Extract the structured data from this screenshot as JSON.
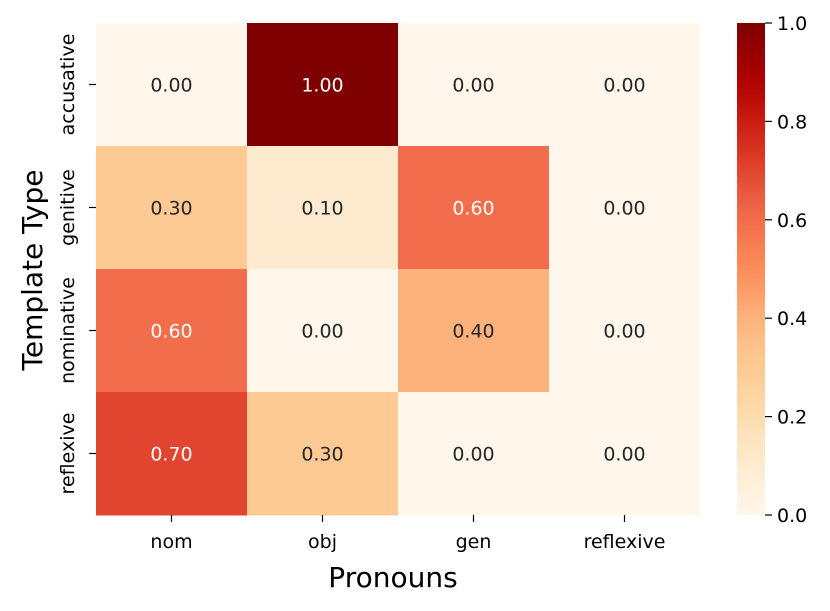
{
  "chart_data": {
    "type": "heatmap",
    "xlabel": "Pronouns",
    "ylabel": "Template Type",
    "x_categories": [
      "nom",
      "obj",
      "gen",
      "reflexive"
    ],
    "y_categories": [
      "accusative",
      "genitive",
      "nominative",
      "reflexive"
    ],
    "values": [
      [
        0.0,
        1.0,
        0.0,
        0.0
      ],
      [
        0.3,
        0.1,
        0.6,
        0.0
      ],
      [
        0.6,
        0.0,
        0.4,
        0.0
      ],
      [
        0.7,
        0.3,
        0.0,
        0.0
      ]
    ],
    "value_format": "0.00",
    "colormap": "OrRd",
    "vmin": 0.0,
    "vmax": 1.0,
    "colorbar_ticks": [
      "0.0",
      "0.2",
      "0.4",
      "0.6",
      "0.8",
      "1.0"
    ],
    "colors": {
      "low": "#fff5eb",
      "high": "#7f0000"
    }
  }
}
